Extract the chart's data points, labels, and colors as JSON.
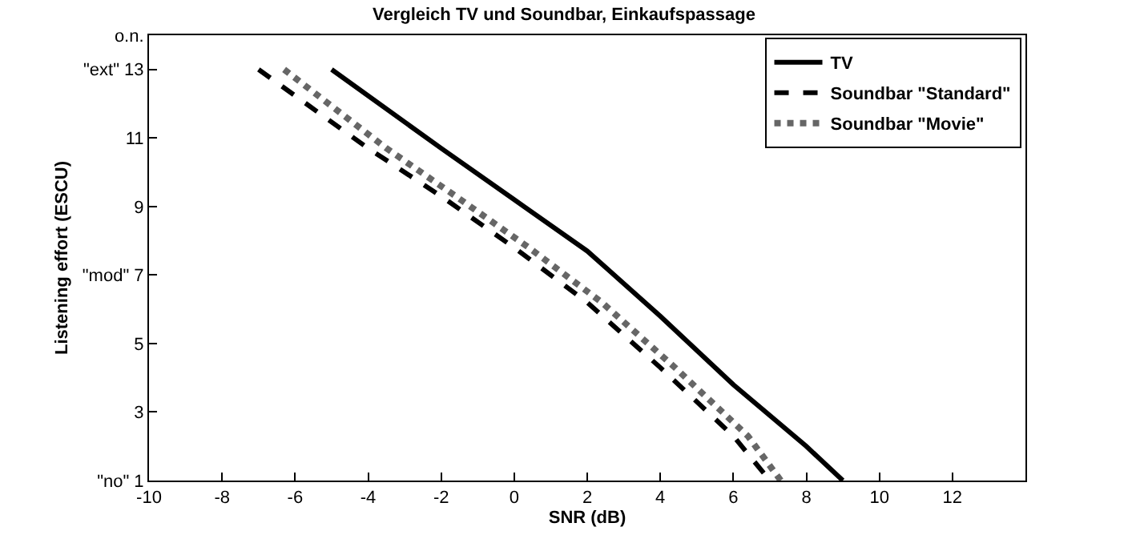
{
  "chart_data": {
    "type": "line",
    "title": "Vergleich TV und Soundbar, Einkaufspassage",
    "xlabel": "SNR (dB)",
    "ylabel": "Listening effort (ESCU)",
    "xlim": [
      -10,
      14
    ],
    "xticks": [
      -10,
      -8,
      -6,
      -4,
      -2,
      0,
      2,
      4,
      6,
      8,
      10,
      12
    ],
    "ylim": [
      1,
      14
    ],
    "yticks": [
      {
        "value": 1,
        "label": "\"no\" 1"
      },
      3,
      5,
      {
        "value": 7,
        "label": "\"mod\" 7"
      },
      9,
      11,
      {
        "value": 13,
        "label": "\"ext\" 13"
      },
      {
        "value": 14,
        "label": "o.n."
      }
    ],
    "grid": false,
    "legend": "top right",
    "marker": "none",
    "series": [
      {
        "name": "TV",
        "color": "#000000",
        "line_style": "solid",
        "x": [
          -5,
          -2,
          0,
          2,
          4,
          6,
          8,
          9
        ],
        "values": [
          13,
          10.7,
          9.2,
          7.7,
          5.8,
          3.8,
          2.0,
          1
        ]
      },
      {
        "name": "Soundbar \"Standard\"",
        "color": "#000000",
        "line_style": "dashed",
        "x": [
          -7,
          -4,
          -2,
          0,
          2,
          4,
          6,
          7
        ],
        "values": [
          13,
          10.7,
          9.3,
          7.8,
          6.2,
          4.3,
          2.3,
          1
        ]
      },
      {
        "name": "Soundbar \"Movie\"",
        "color": "#666666",
        "line_style": "dotted",
        "x": [
          -6.3,
          -3.5,
          -1.6,
          0.4,
          2.4,
          4.4,
          6.4,
          7.3
        ],
        "values": [
          13,
          10.7,
          9.3,
          7.8,
          6.2,
          4.3,
          2.3,
          1
        ]
      }
    ]
  }
}
